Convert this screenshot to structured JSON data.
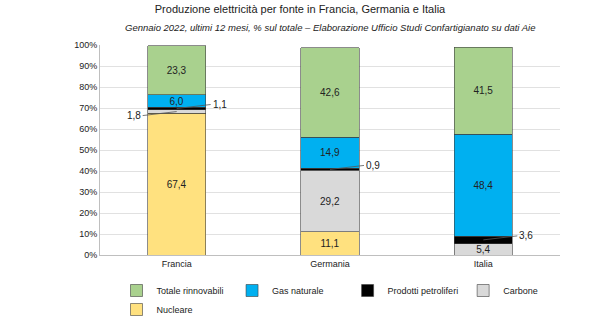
{
  "chart_data": {
    "type": "bar",
    "title": "Produzione elettricità per fonte in Francia, Germania e Italia",
    "subtitle": "Gennaio 2022, ultimi 12 mesi, % sul totale – Elaborazione Ufficio Studi Confartigianato su dati Aie",
    "categories": [
      "Francia",
      "Germania",
      "Italia"
    ],
    "series": [
      {
        "name": "Nucleare",
        "color": "#ffe17f",
        "values": [
          67.4,
          11.1,
          null
        ],
        "value_labels": [
          "67,4",
          "11,1",
          null
        ]
      },
      {
        "name": "Carbone",
        "color": "#d9d9d9",
        "values": [
          1.8,
          29.2,
          5.4
        ],
        "value_labels": [
          "1,8",
          "29,2",
          "5,4"
        ]
      },
      {
        "name": "Prodotti petroliferi",
        "color": "#000000",
        "values": [
          1.1,
          0.9,
          3.6
        ],
        "value_labels": [
          "1,1",
          "0,9",
          "3,6"
        ]
      },
      {
        "name": "Gas naturale",
        "color": "#00b0f0",
        "values": [
          6.0,
          14.9,
          48.4
        ],
        "value_labels": [
          "6,0",
          "14,9",
          "48,4"
        ]
      },
      {
        "name": "Totale rinnovabili",
        "color": "#a9d18e",
        "values": [
          23.3,
          42.6,
          41.5
        ],
        "value_labels": [
          "23,3",
          "42,6",
          "41,5"
        ]
      }
    ],
    "ylim": [
      0,
      100
    ],
    "yticks": [
      {
        "value": 0,
        "label": "0%"
      },
      {
        "value": 10,
        "label": "10%"
      },
      {
        "value": 20,
        "label": "20%"
      },
      {
        "value": 30,
        "label": "30%"
      },
      {
        "value": 40,
        "label": "40%"
      },
      {
        "value": 50,
        "label": "50%"
      },
      {
        "value": 60,
        "label": "60%"
      },
      {
        "value": 70,
        "label": "70%"
      },
      {
        "value": 80,
        "label": "80%"
      },
      {
        "value": 90,
        "label": "90%"
      },
      {
        "value": 100,
        "label": "100%"
      }
    ],
    "grid": true,
    "legend": "bottom",
    "stacked": true,
    "data_labels": true
  }
}
